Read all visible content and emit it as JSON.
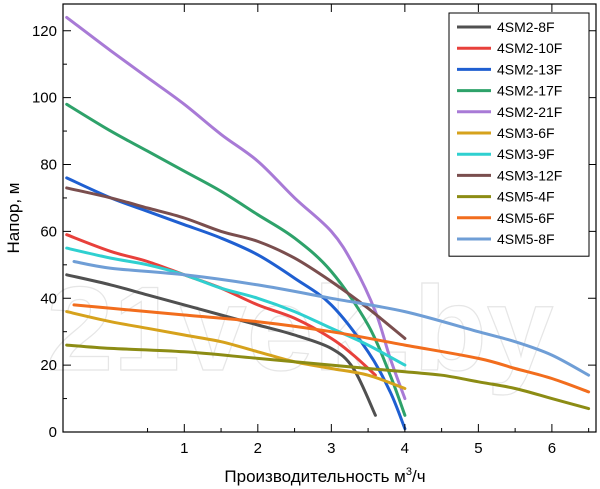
{
  "watermark": "21vek.by",
  "chart_data": {
    "type": "line",
    "xlabel": "Производительность м³/ч",
    "xlabel_main": "Производительность м",
    "xlabel_sup": "3",
    "xlabel_tail": "/ч",
    "ylabel": "Напор, м",
    "xlim": [
      -0.65,
      6.6
    ],
    "ylim": [
      0,
      128
    ],
    "x_ticks": [
      1,
      2,
      3,
      4,
      5,
      6
    ],
    "y_ticks": [
      0,
      20,
      40,
      60,
      80,
      100,
      120
    ],
    "grid": false,
    "legend_position": "top-right",
    "series": [
      {
        "name": "4SM2-8F",
        "color": "#505050",
        "x": [
          -0.6,
          0,
          0.5,
          1,
          1.5,
          2,
          2.5,
          3,
          3.3,
          3.6
        ],
        "y": [
          47,
          44,
          41,
          38,
          35,
          32,
          29,
          25,
          19,
          5
        ]
      },
      {
        "name": "4SM2-10F",
        "color": "#e8403b",
        "x": [
          -0.6,
          0,
          0.5,
          1,
          1.5,
          2,
          2.5,
          3,
          3.3,
          3.6
        ],
        "y": [
          59,
          54,
          51,
          47,
          43,
          38,
          34,
          28,
          23,
          17
        ]
      },
      {
        "name": "4SM2-13F",
        "color": "#1f5fd1",
        "x": [
          -0.6,
          0,
          0.5,
          1,
          1.5,
          2,
          2.5,
          3,
          3.5,
          3.8,
          4.0
        ],
        "y": [
          76,
          70,
          66,
          62,
          58,
          53,
          46,
          38,
          24,
          12,
          1
        ]
      },
      {
        "name": "4SM2-17F",
        "color": "#2ea26a",
        "x": [
          -0.6,
          0,
          0.5,
          1,
          1.5,
          2,
          2.5,
          3,
          3.5,
          3.8,
          4.0
        ],
        "y": [
          98,
          90,
          84,
          78,
          72,
          65,
          58,
          48,
          32,
          17,
          5
        ]
      },
      {
        "name": "4SM2-21F",
        "color": "#a87ad6",
        "x": [
          -0.6,
          0,
          0.5,
          1,
          1.5,
          2,
          2.5,
          3,
          3.3,
          3.6,
          3.8,
          4.0
        ],
        "y": [
          124,
          114,
          106,
          98,
          89,
          81,
          70,
          60,
          50,
          36,
          22,
          10
        ]
      },
      {
        "name": "4SM3-6F",
        "color": "#d6a21c",
        "x": [
          -0.6,
          0,
          0.5,
          1,
          1.5,
          2,
          2.5,
          3,
          3.5,
          4.0
        ],
        "y": [
          36,
          33,
          31,
          29,
          27,
          24,
          21,
          19,
          17,
          13
        ]
      },
      {
        "name": "4SM3-9F",
        "color": "#2fd0d0",
        "x": [
          -0.6,
          0,
          0.5,
          1,
          1.5,
          2,
          2.5,
          3,
          3.5,
          4.0
        ],
        "y": [
          55,
          52,
          50,
          47,
          43,
          40,
          36,
          31,
          26,
          20
        ]
      },
      {
        "name": "4SM3-12F",
        "color": "#7a4e4e",
        "x": [
          -0.6,
          0,
          0.5,
          1,
          1.5,
          2,
          2.5,
          3,
          3.5,
          4.0
        ],
        "y": [
          73,
          70,
          67,
          64,
          60,
          57,
          52,
          45,
          37,
          28
        ]
      },
      {
        "name": "4SM5-4F",
        "color": "#8c8c14",
        "x": [
          -0.6,
          0,
          1,
          2,
          3,
          4,
          4.5,
          5,
          5.5,
          6,
          6.5
        ],
        "y": [
          26,
          25,
          24,
          22,
          20,
          18,
          17,
          15,
          13,
          10,
          7
        ]
      },
      {
        "name": "4SM5-6F",
        "color": "#f26d1d",
        "x": [
          -0.5,
          0,
          1,
          2,
          3,
          4,
          5,
          5.5,
          6,
          6.5
        ],
        "y": [
          38,
          37,
          35,
          33,
          30,
          26,
          22,
          19,
          16,
          12
        ]
      },
      {
        "name": "4SM5-8F",
        "color": "#6f9ed6",
        "x": [
          -0.5,
          0,
          1,
          2,
          3,
          4,
          5,
          5.5,
          6,
          6.5
        ],
        "y": [
          51,
          49,
          47,
          44,
          40,
          36,
          30,
          27,
          23,
          17
        ]
      }
    ]
  }
}
